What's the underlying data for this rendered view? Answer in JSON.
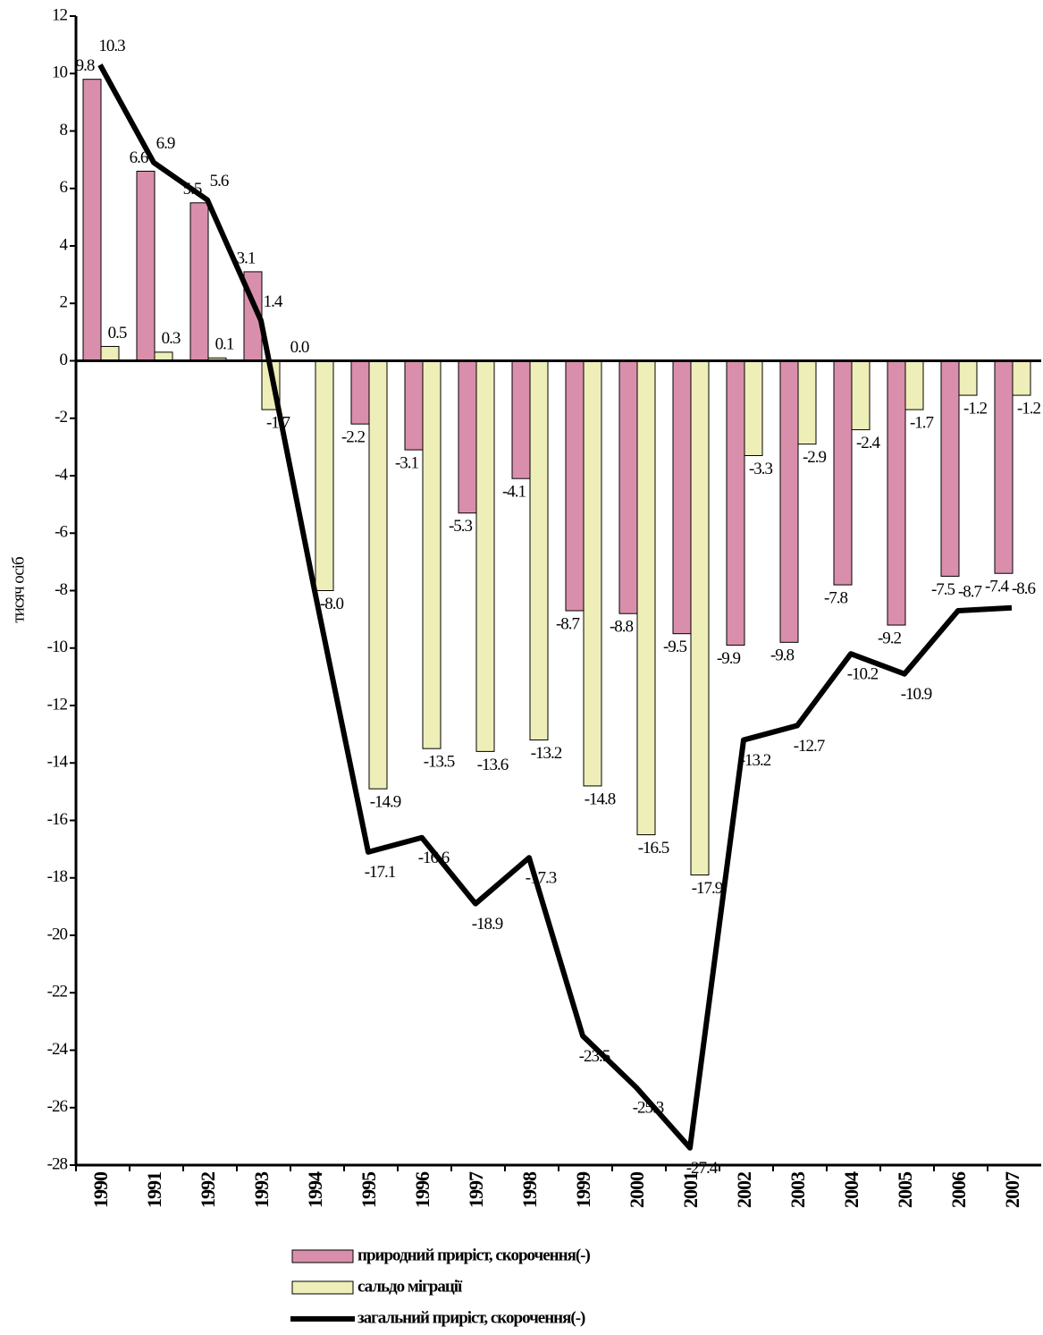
{
  "chart_data": {
    "type": "bar_line",
    "y_label": "тисяч осіб",
    "categories": [
      "1990",
      "1991",
      "1992",
      "1993",
      "1994",
      "1995",
      "1996",
      "1997",
      "1998",
      "1999",
      "2000",
      "2001",
      "2002",
      "2003",
      "2004",
      "2005",
      "2006",
      "2007"
    ],
    "series": [
      {
        "name": "природний приріст, скорочення(-)",
        "type": "bar",
        "color": "#d98fab",
        "values": [
          9.8,
          6.6,
          5.5,
          3.1,
          0.0,
          -2.2,
          -3.1,
          -5.3,
          -4.1,
          -8.7,
          -8.8,
          -9.5,
          -9.9,
          -9.8,
          -7.8,
          -9.2,
          -7.5,
          -7.4
        ],
        "value_labels": [
          "9.8",
          "6.6",
          "5.5",
          "3.1",
          "0.0",
          "-2.2",
          "-3.1",
          "-5.3",
          "-4.1",
          "-8.7",
          "-8.8",
          "-9.5",
          "-9.9",
          "-9.8",
          "-7.8",
          "-9.2",
          "-7.5",
          "-7.4"
        ]
      },
      {
        "name": "сальдо міграції",
        "type": "bar",
        "color": "#eeeeb8",
        "values": [
          0.5,
          0.3,
          0.1,
          -1.7,
          -8.0,
          -14.9,
          -13.5,
          -13.6,
          -13.2,
          -14.8,
          -16.5,
          -17.9,
          -3.3,
          -2.9,
          -2.4,
          -1.7,
          -1.2,
          -1.2
        ],
        "value_labels": [
          "0.5",
          "0.3",
          "0.1",
          "-1.7",
          "-8.0",
          "-14.9",
          "-13.5",
          "-13.6",
          "-13.2",
          "-14.8",
          "-16.5",
          "-17.9",
          "-3.3",
          "-2.9",
          "-2.4",
          "-1.7",
          "-1.2",
          "-1.2"
        ]
      },
      {
        "name": "загальний приріст, скорочення(-)",
        "type": "line",
        "color": "#000000",
        "values": [
          10.3,
          6.9,
          5.6,
          1.4,
          -8.0,
          -17.1,
          -16.6,
          -18.9,
          -17.3,
          -23.5,
          -25.3,
          -27.4,
          -13.2,
          -12.7,
          -10.2,
          -10.9,
          -8.7,
          -8.6
        ],
        "value_labels": [
          "10.3",
          "6.9",
          "5.6",
          "1.4",
          null,
          "-17.1",
          "-16.6",
          "-18.9",
          "-17.3",
          "-23.5",
          "-25.3",
          "-27.4",
          "-13.2",
          "-12.7",
          "-10.2",
          "-10.9",
          "-8.7",
          "-8.6"
        ]
      }
    ],
    "ylim": [
      -28,
      12
    ],
    "yticks": [
      -28,
      -26,
      -24,
      -22,
      -20,
      -18,
      -16,
      -14,
      -12,
      -10,
      -8,
      -6,
      -4,
      -2,
      0,
      2,
      4,
      6,
      8,
      10,
      12
    ],
    "legend": "bottom"
  }
}
